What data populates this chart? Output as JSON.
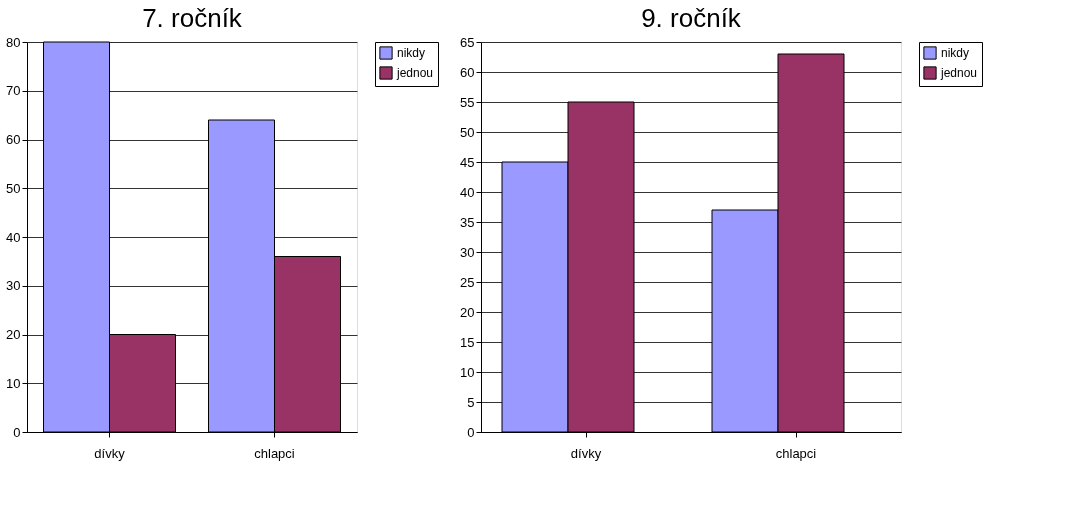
{
  "chart_data": [
    {
      "type": "bar",
      "title": "7. ročník",
      "categories": [
        "dívky",
        "chlapci"
      ],
      "series": [
        {
          "name": "nikdy",
          "color": "#9999ff",
          "values": [
            80,
            64
          ]
        },
        {
          "name": "jednou",
          "color": "#993366",
          "values": [
            20,
            36
          ]
        }
      ],
      "ylim": [
        0,
        80
      ],
      "yticks": [
        0,
        10,
        20,
        30,
        40,
        50,
        60,
        70,
        80
      ],
      "grid": "y",
      "legend": "right"
    },
    {
      "type": "bar",
      "title": "9. ročník",
      "categories": [
        "dívky",
        "chlapci"
      ],
      "series": [
        {
          "name": "nikdy",
          "color": "#9999ff",
          "values": [
            45,
            37
          ]
        },
        {
          "name": "jednou",
          "color": "#993366",
          "values": [
            55,
            63
          ]
        }
      ],
      "ylim": [
        0,
        65
      ],
      "yticks": [
        0,
        5,
        10,
        15,
        20,
        25,
        30,
        35,
        40,
        45,
        50,
        55,
        60,
        65
      ],
      "grid": "y",
      "legend": "right"
    }
  ]
}
